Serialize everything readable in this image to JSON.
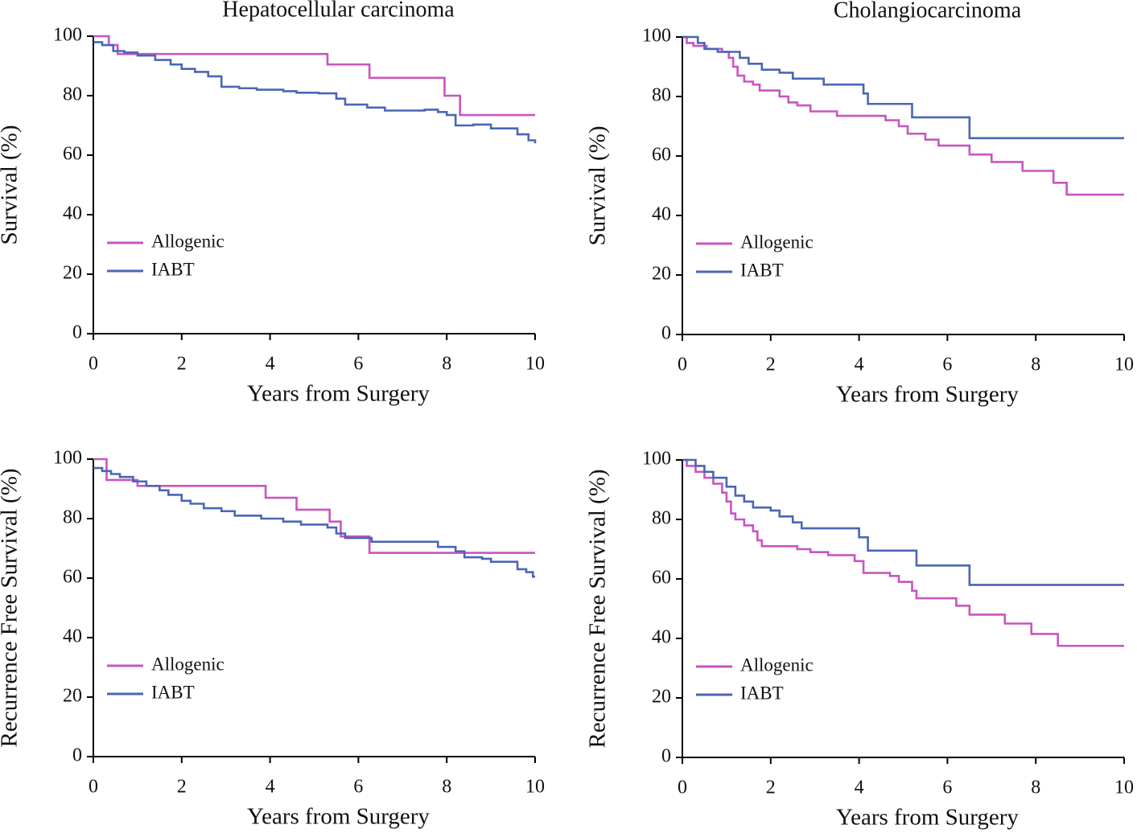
{
  "chart_data": [
    {
      "type": "step",
      "title": "Hepatocellular carcinoma",
      "xlabel": "Years from Surgery",
      "ylabel": "Survival (%)",
      "xlim": [
        0,
        10
      ],
      "ylim": [
        0,
        100
      ],
      "xticks": [
        0,
        2,
        4,
        6,
        8,
        10
      ],
      "yticks": [
        0,
        20,
        40,
        60,
        80,
        100
      ],
      "series": [
        {
          "name": "Allogenic",
          "color": "#c855c0",
          "x": [
            0,
            0.35,
            0.55,
            5.3,
            6.25,
            7.95,
            8.3,
            10
          ],
          "values": [
            100,
            97,
            94,
            90.5,
            86,
            80,
            73.5,
            73.5
          ]
        },
        {
          "name": "IABT",
          "color": "#4a66b4",
          "x": [
            0,
            0.2,
            0.45,
            0.7,
            1.0,
            1.4,
            1.75,
            2.0,
            2.3,
            2.6,
            2.9,
            3.3,
            3.7,
            4.3,
            4.6,
            5.1,
            5.5,
            5.7,
            6.2,
            6.6,
            7.5,
            7.8,
            8.0,
            8.2,
            8.6,
            9.0,
            9.6,
            9.85,
            10
          ],
          "values": [
            98,
            97,
            95,
            94.5,
            93.5,
            92,
            90.5,
            89,
            88,
            86.5,
            83,
            82.5,
            82,
            81.5,
            81,
            80.8,
            79,
            77,
            76,
            75,
            75.3,
            74.5,
            73.5,
            70,
            70.3,
            69,
            67,
            65,
            64
          ]
        }
      ]
    },
    {
      "type": "step",
      "title": "Cholangiocarcinoma",
      "xlabel": "Years from Surgery",
      "ylabel": "Survival (%)",
      "xlim": [
        0,
        10
      ],
      "ylim": [
        0,
        100
      ],
      "xticks": [
        0,
        2,
        4,
        6,
        8,
        10
      ],
      "yticks": [
        0,
        20,
        40,
        60,
        80,
        100
      ],
      "series": [
        {
          "name": "Allogenic",
          "color": "#c855c0",
          "x": [
            0,
            0.1,
            0.25,
            0.55,
            0.9,
            1.05,
            1.15,
            1.25,
            1.4,
            1.6,
            1.75,
            2.2,
            2.4,
            2.6,
            2.9,
            3.5,
            4.6,
            4.9,
            5.1,
            5.5,
            5.8,
            6.5,
            7.0,
            7.7,
            8.4,
            8.7,
            10
          ],
          "values": [
            100,
            98,
            97,
            96,
            95,
            93,
            90,
            87,
            85,
            84,
            82,
            80,
            78,
            77,
            75,
            73.5,
            72,
            70,
            67.5,
            65.5,
            63.5,
            60.5,
            58,
            55,
            51,
            47,
            47
          ]
        },
        {
          "name": "IABT",
          "color": "#4a66b4",
          "x": [
            0,
            0.35,
            0.5,
            0.8,
            1.3,
            1.5,
            1.8,
            2.2,
            2.5,
            3.2,
            4.1,
            4.2,
            5.2,
            6.5,
            10
          ],
          "values": [
            100,
            98,
            96,
            95,
            93,
            91,
            89,
            88,
            86,
            84,
            81,
            77.5,
            73,
            66,
            66
          ]
        }
      ]
    },
    {
      "type": "step",
      "xlabel": "Years from Surgery",
      "ylabel": "Recurrence Free Survival (%)",
      "xlim": [
        0,
        10
      ],
      "ylim": [
        0,
        100
      ],
      "xticks": [
        0,
        2,
        4,
        6,
        8,
        10
      ],
      "yticks": [
        0,
        20,
        40,
        60,
        80,
        100
      ],
      "series": [
        {
          "name": "Allogenic",
          "color": "#c855c0",
          "x": [
            0,
            0.3,
            1.0,
            3.9,
            4.6,
            5.35,
            5.6,
            6.25,
            10
          ],
          "values": [
            100,
            93,
            91,
            87,
            83,
            79,
            74,
            68.5,
            68.5
          ]
        },
        {
          "name": "IABT",
          "color": "#4a66b4",
          "x": [
            0,
            0.2,
            0.4,
            0.6,
            0.9,
            1.2,
            1.5,
            1.7,
            2.0,
            2.2,
            2.5,
            2.9,
            3.2,
            3.8,
            4.3,
            4.7,
            5.3,
            5.5,
            5.7,
            6.3,
            7.8,
            8.2,
            8.4,
            8.8,
            9.0,
            9.6,
            9.8,
            9.95,
            10
          ],
          "values": [
            97,
            96,
            95,
            94,
            92.5,
            91,
            89.5,
            88,
            86,
            85,
            83.5,
            82.5,
            81,
            80,
            79,
            78,
            77,
            75,
            73.5,
            72.2,
            70.5,
            69,
            67,
            66.5,
            65.5,
            63,
            62,
            60.5,
            60.5
          ]
        }
      ]
    },
    {
      "type": "step",
      "xlabel": "Years from Surgery",
      "ylabel": "Recurrence Free Survival (%)",
      "xlim": [
        0,
        10
      ],
      "ylim": [
        0,
        100
      ],
      "xticks": [
        0,
        2,
        4,
        6,
        8,
        10
      ],
      "yticks": [
        0,
        20,
        40,
        60,
        80,
        100
      ],
      "series": [
        {
          "name": "Allogenic",
          "color": "#c855c0",
          "x": [
            0,
            0.1,
            0.3,
            0.5,
            0.7,
            0.9,
            1.0,
            1.1,
            1.2,
            1.4,
            1.6,
            1.7,
            1.8,
            2.6,
            2.9,
            3.3,
            3.9,
            4.1,
            4.7,
            4.9,
            5.2,
            5.3,
            6.2,
            6.5,
            7.3,
            7.9,
            8.5,
            10
          ],
          "values": [
            100,
            98,
            96,
            94,
            92,
            89,
            86,
            82,
            80,
            78,
            76,
            73,
            71,
            70,
            69,
            68,
            66,
            62,
            61,
            59,
            56,
            53.5,
            51,
            48,
            45,
            41.5,
            37.5,
            37.5
          ]
        },
        {
          "name": "IABT",
          "color": "#4a66b4",
          "x": [
            0,
            0.3,
            0.5,
            0.7,
            1.0,
            1.2,
            1.4,
            1.6,
            2.0,
            2.2,
            2.5,
            2.7,
            4.0,
            4.2,
            5.3,
            6.5,
            10
          ],
          "values": [
            100,
            98,
            96,
            94,
            91,
            88,
            86,
            84,
            83,
            81,
            79,
            77,
            74,
            69.5,
            64.5,
            58,
            58
          ]
        }
      ]
    }
  ]
}
